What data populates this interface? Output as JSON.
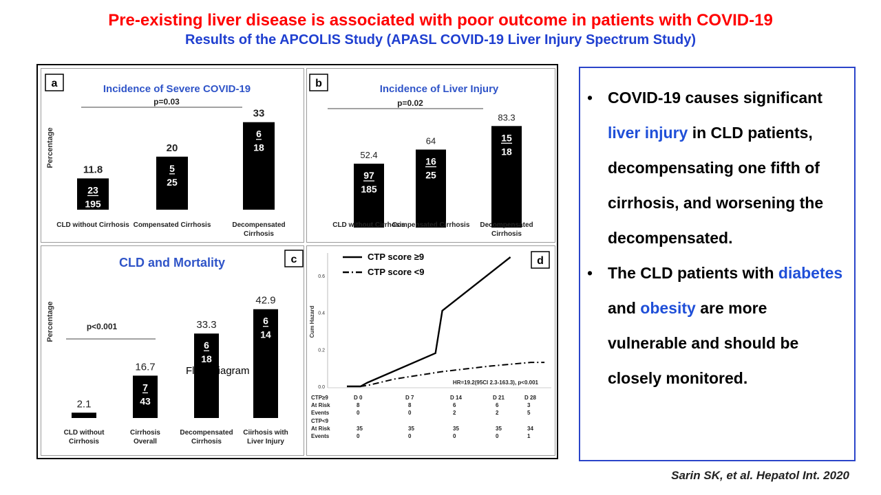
{
  "header": {
    "title": "Pre-existing liver disease is associated with poor outcome in patients with COVID-19",
    "subtitle": "Results of the APCOLIS Study (APASL COVID-19 Liver Injury Spectrum Study)"
  },
  "colors": {
    "title": "#ff0000",
    "subtitle": "#1f3fd0",
    "panel_title": "#2f54c8",
    "bar": "#000000",
    "highlight": "#1f4fd8",
    "box_border": "#2a44c9"
  },
  "chart_data": [
    {
      "panel": "a",
      "type": "bar",
      "title": "Incidence of Severe COVID-19",
      "ylabel": "Percentage",
      "pvalue": "p=0.03",
      "categories": [
        "CLD without Cirrhosis",
        "Compensated Cirrhosis",
        "Decompensated Cirrhosis"
      ],
      "values": [
        11.8,
        20,
        33
      ],
      "value_labels": [
        "11.8",
        "20",
        "33"
      ],
      "numerators": [
        "23",
        "5",
        "6"
      ],
      "denominators": [
        "195",
        "25",
        "18"
      ],
      "ylim": [
        0,
        35
      ]
    },
    {
      "panel": "b",
      "type": "bar",
      "title": "Incidence of Liver Injury",
      "ylabel": "",
      "pvalue": "p=0.02",
      "categories": [
        "CLD without Cirrhosis",
        "Compensated Cirrhosis",
        "Decompensated Cirrhosis"
      ],
      "values": [
        52.4,
        64,
        83.3
      ],
      "value_labels": [
        "52.4",
        "64",
        "83.3"
      ],
      "numerators": [
        "97",
        "16",
        "15"
      ],
      "denominators": [
        "185",
        "25",
        "18"
      ],
      "ylim": [
        0,
        88
      ]
    },
    {
      "panel": "c",
      "type": "bar",
      "title": "CLD and Mortality",
      "ylabel": "Percentage",
      "pvalue": "p<0.001",
      "categories": [
        "CLD without Cirrhosis",
        "Cirrhosis Overall",
        "Decompensated Cirrhosis",
        "Ciirhosis with Liver Injury"
      ],
      "values": [
        2.1,
        16.7,
        33.3,
        42.9
      ],
      "value_labels": [
        "2.1",
        "16.7",
        "33.3",
        "42.9"
      ],
      "numerators": [
        "",
        "7",
        "6",
        "6"
      ],
      "denominators": [
        "",
        "43",
        "18",
        "14"
      ],
      "ylim": [
        0,
        45
      ]
    },
    {
      "panel": "d",
      "type": "line",
      "ylabel": "Cum Hazard",
      "yticks": [
        "0.0",
        "0.2",
        "0.4",
        "0.6"
      ],
      "ylim": [
        0,
        0.7
      ],
      "xlim": [
        0,
        30
      ],
      "series": [
        {
          "name": "CTP score ≥9",
          "style": "solid",
          "x": [
            0,
            2,
            3,
            13,
            14,
            24
          ],
          "y": [
            0,
            0,
            0.02,
            0.18,
            0.41,
            0.7
          ]
        },
        {
          "name": "CTP score <9",
          "style": "dashdot",
          "x": [
            0,
            2,
            3,
            7,
            14,
            21,
            27,
            29
          ],
          "y": [
            0,
            0,
            0.005,
            0.04,
            0.08,
            0.11,
            0.13,
            0.13
          ]
        }
      ],
      "annotation": "HR=19.2(95CI 2.3-163.3), p<0.001",
      "risk_table": {
        "timepoints": [
          "D 0",
          "D 7",
          "D 14",
          "D 21",
          "D 28"
        ],
        "groups": [
          {
            "label": "CTP≥9",
            "at_risk": [
              "8",
              "8",
              "6",
              "6",
              "3"
            ],
            "events": [
              "0",
              "0",
              "2",
              "2",
              "5"
            ]
          },
          {
            "label": "CTP<9",
            "at_risk": [
              "35",
              "35",
              "35",
              "35",
              "34"
            ],
            "events": [
              "0",
              "0",
              "0",
              "0",
              "1"
            ]
          }
        ],
        "at_risk_label": "At Risk",
        "events_label": "Events"
      }
    }
  ],
  "overlay_text": "Flow Diagram",
  "summary": {
    "bullets": [
      [
        {
          "t": "COVID-19 causes significant "
        },
        {
          "t": "liver injury",
          "hl": true
        },
        {
          "t": " in CLD patients, decompensating one fifth of cirrhosis, and worsening the decompensated."
        }
      ],
      [
        {
          "t": "The CLD patients with "
        },
        {
          "t": "diabetes",
          "hl": true
        },
        {
          "t": " and "
        },
        {
          "t": "obesity",
          "hl": true
        },
        {
          "t": " are more vulnerable and should be closely monitored."
        }
      ]
    ]
  },
  "citation": "Sarin SK, et al. Hepatol Int. 2020"
}
